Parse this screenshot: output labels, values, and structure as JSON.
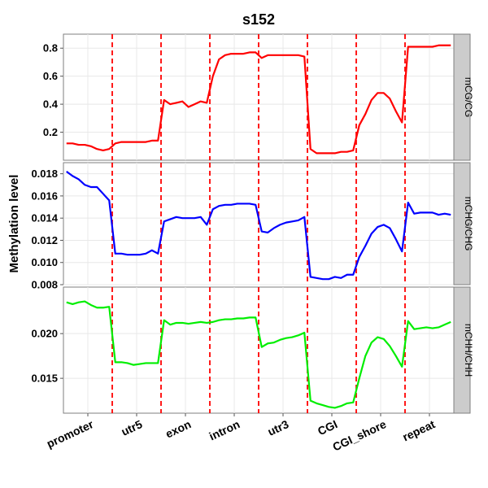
{
  "chart_data": {
    "type": "line",
    "title": "s152",
    "y_label": "Methylation level",
    "xlim": [
      0,
      64
    ],
    "xticks": [
      {
        "value": 4,
        "label": "promoter"
      },
      {
        "value": 12,
        "label": "utr5"
      },
      {
        "value": 20,
        "label": "exon"
      },
      {
        "value": 28,
        "label": "intron"
      },
      {
        "value": 36,
        "label": "utr3"
      },
      {
        "value": 44,
        "label": "CGI"
      },
      {
        "value": 52,
        "label": "CGI_shore"
      },
      {
        "value": 60,
        "label": "repeat"
      }
    ],
    "boundaries": [
      8,
      16,
      24,
      32,
      40,
      48,
      56
    ],
    "boundary_color": "#ff0000",
    "grid": true,
    "x": [
      0.5,
      1.5,
      2.5,
      3.5,
      4.5,
      5.5,
      6.5,
      7.5,
      8.5,
      9.5,
      10.5,
      11.5,
      12.5,
      13.5,
      14.5,
      15.5,
      16.5,
      17.5,
      18.5,
      19.5,
      20.5,
      21.5,
      22.5,
      23.5,
      24.5,
      25.5,
      26.5,
      27.5,
      28.5,
      29.5,
      30.5,
      31.5,
      32.5,
      33.5,
      34.5,
      35.5,
      36.5,
      37.5,
      38.5,
      39.5,
      40.5,
      41.5,
      42.5,
      43.5,
      44.5,
      45.5,
      46.5,
      47.5,
      48.5,
      49.5,
      50.5,
      51.5,
      52.5,
      53.5,
      54.5,
      55.5,
      56.5,
      57.5,
      58.5,
      59.5,
      60.5,
      61.5,
      62.5,
      63.5
    ],
    "facets": [
      {
        "name": "mCG/CG",
        "color": "#ff0000",
        "ylim": [
          0,
          0.9
        ],
        "yticks": [
          0.2,
          0.4,
          0.6,
          0.8
        ],
        "values": [
          0.12,
          0.12,
          0.11,
          0.11,
          0.1,
          0.08,
          0.07,
          0.08,
          0.12,
          0.13,
          0.13,
          0.13,
          0.13,
          0.13,
          0.14,
          0.14,
          0.43,
          0.4,
          0.41,
          0.42,
          0.38,
          0.4,
          0.42,
          0.41,
          0.6,
          0.72,
          0.75,
          0.76,
          0.76,
          0.76,
          0.77,
          0.77,
          0.73,
          0.75,
          0.75,
          0.75,
          0.75,
          0.75,
          0.75,
          0.74,
          0.08,
          0.05,
          0.05,
          0.05,
          0.05,
          0.06,
          0.06,
          0.07,
          0.25,
          0.33,
          0.43,
          0.48,
          0.48,
          0.44,
          0.35,
          0.27,
          0.81,
          0.81,
          0.81,
          0.81,
          0.81,
          0.82,
          0.82,
          0.82
        ]
      },
      {
        "name": "mCHG/CHG",
        "color": "#0000ff",
        "ylim": [
          0.008,
          0.019
        ],
        "yticks": [
          0.008,
          {
            "value": 0.01,
            "label": "0.010"
          },
          0.012,
          0.014,
          0.016,
          0.018
        ],
        "values": [
          0.0182,
          0.0178,
          0.0175,
          0.017,
          0.0168,
          0.0168,
          0.0162,
          0.0156,
          0.0108,
          0.0108,
          0.0107,
          0.0107,
          0.0107,
          0.0108,
          0.0111,
          0.0108,
          0.0137,
          0.0139,
          0.0141,
          0.014,
          0.014,
          0.014,
          0.0141,
          0.0134,
          0.0148,
          0.0151,
          0.0152,
          0.0152,
          0.0153,
          0.0153,
          0.0153,
          0.0152,
          0.0128,
          0.0127,
          0.0131,
          0.0134,
          0.0136,
          0.0137,
          0.0138,
          0.0141,
          0.0087,
          0.0086,
          0.0085,
          0.0085,
          0.0087,
          0.0086,
          0.0089,
          0.0089,
          0.0105,
          0.0115,
          0.0126,
          0.0132,
          0.0134,
          0.0131,
          0.0121,
          0.011,
          0.0154,
          0.0144,
          0.0145,
          0.0145,
          0.0145,
          0.0143,
          0.0144,
          0.0143
        ]
      },
      {
        "name": "mCHH/CHH",
        "color": "#00ee00",
        "ylim": [
          0.0111,
          0.0252
        ],
        "yticks": [
          0.015,
          {
            "value": 0.02,
            "label": "0.020"
          }
        ],
        "values": [
          0.0235,
          0.0233,
          0.0235,
          0.0236,
          0.0232,
          0.0229,
          0.0229,
          0.023,
          0.0168,
          0.0168,
          0.0167,
          0.0165,
          0.0166,
          0.0167,
          0.0167,
          0.0167,
          0.0215,
          0.021,
          0.0212,
          0.0212,
          0.0211,
          0.0212,
          0.0213,
          0.0212,
          0.0213,
          0.0215,
          0.0216,
          0.0216,
          0.0217,
          0.0217,
          0.0218,
          0.0218,
          0.0185,
          0.0189,
          0.019,
          0.0193,
          0.0195,
          0.0196,
          0.0198,
          0.0201,
          0.0125,
          0.0122,
          0.012,
          0.0118,
          0.0117,
          0.0119,
          0.0122,
          0.0123,
          0.015,
          0.0175,
          0.019,
          0.0196,
          0.0194,
          0.0186,
          0.0175,
          0.0163,
          0.0214,
          0.0205,
          0.0206,
          0.0207,
          0.0206,
          0.0207,
          0.021,
          0.0213
        ]
      }
    ]
  }
}
